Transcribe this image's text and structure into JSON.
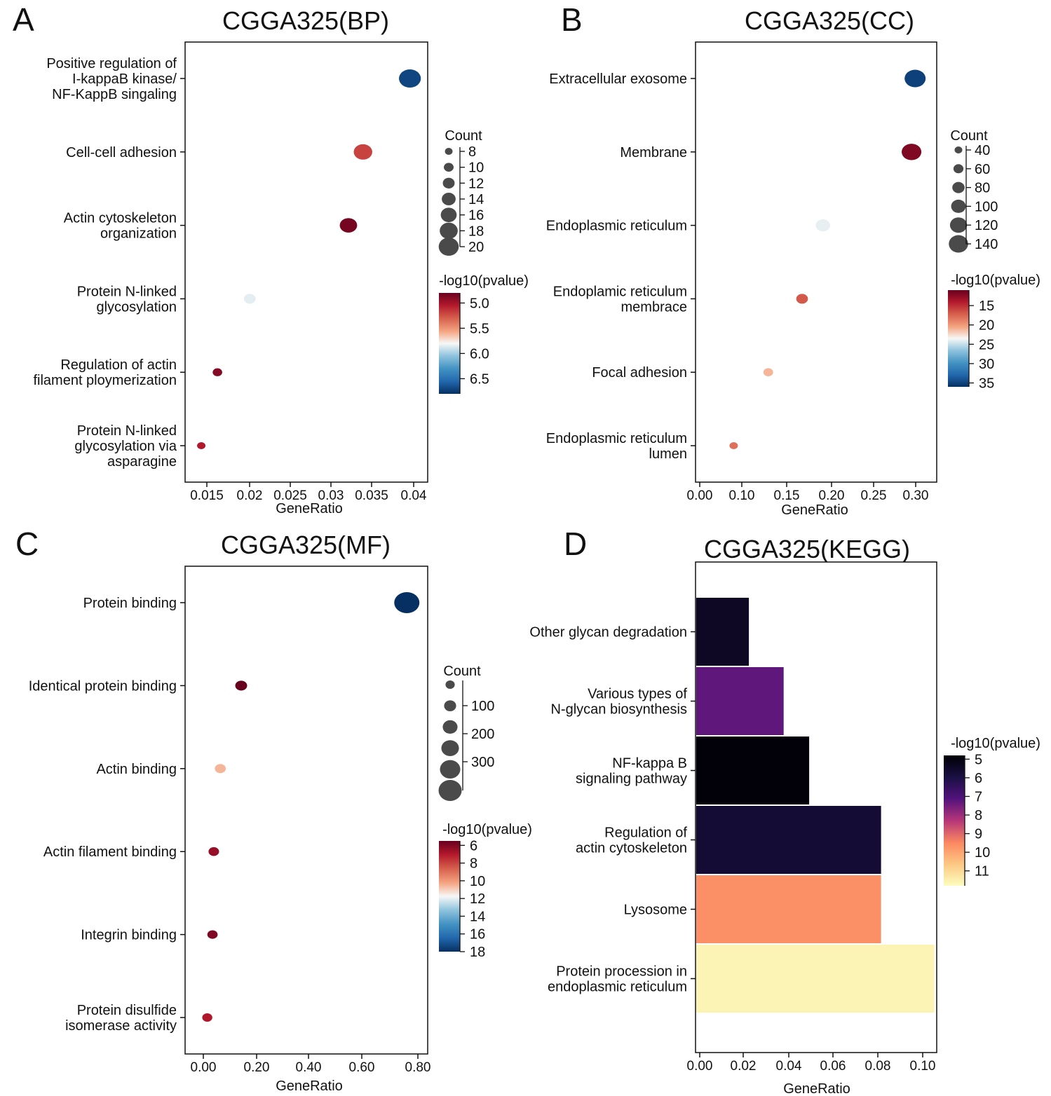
{
  "chart_data": [
    {
      "panel": "A",
      "title": "CGGA325(BP)",
      "type": "scatter",
      "xlabel": "GeneRatio",
      "xlim": [
        0.012,
        0.042
      ],
      "xticks": [
        "0.015",
        "0.02",
        "0.025",
        "0.03",
        "0.035",
        "0.04"
      ],
      "categories": [
        [
          "Positive regulation of",
          "I-kappaB kinase/",
          "NF-KappB singaling"
        ],
        [
          "Cell-cell adhesion"
        ],
        [
          "Actin cytoskeleton",
          "organization"
        ],
        [
          "Protein N-linked",
          "glycosylation"
        ],
        [
          "Regulation of actin",
          "filament ploymerization"
        ],
        [
          "Protein N-linked",
          "glycosylation via",
          "asparagine"
        ]
      ],
      "x": [
        0.0398,
        0.034,
        0.0322,
        0.02,
        0.016,
        0.014
      ],
      "count": [
        20,
        17,
        16,
        11,
        9,
        8
      ],
      "pvalue": [
        6.7,
        5.2,
        4.85,
        5.85,
        4.9,
        5.05
      ],
      "size_legend": {
        "title": "Count",
        "ticks": [
          "8",
          "10",
          "12",
          "14",
          "16",
          "18",
          "20"
        ]
      },
      "color_legend": {
        "title": "-log10(pvalue)",
        "ticks": [
          "5.0",
          "5.5",
          "6.0",
          "6.5"
        ],
        "range": [
          4.8,
          6.8
        ],
        "reversed": false,
        "palette": "RdBu"
      }
    },
    {
      "panel": "B",
      "title": "CGGA325(CC)",
      "type": "scatter",
      "xlabel": "GeneRatio",
      "xlim": [
        -0.005,
        0.33
      ],
      "xticks": [
        "0.00",
        "0.10",
        "0.15",
        "0.20",
        "0.25",
        "0.30"
      ],
      "categories": [
        [
          "Extracellular exosome"
        ],
        [
          "Membrane"
        ],
        [
          "Endoplasmic reticulum"
        ],
        [
          "Endoplamic reticulum",
          "membrace"
        ],
        [
          "Focal adhesion"
        ],
        [
          "Endoplasmic reticulum",
          "lumen"
        ]
      ],
      "x": [
        0.3,
        0.295,
        0.172,
        0.143,
        0.096,
        0.048
      ],
      "count": [
        140,
        130,
        90,
        70,
        55,
        45
      ],
      "pvalue": [
        35,
        12,
        24,
        17,
        21,
        18
      ],
      "size_legend": {
        "title": "Count",
        "ticks": [
          "40",
          "60",
          "80",
          "100",
          "120",
          "140"
        ]
      },
      "color_legend": {
        "title": "-log10(pvalue)",
        "ticks": [
          "15",
          "20",
          "25",
          "30",
          "35"
        ],
        "range": [
          11,
          36
        ],
        "reversed": false,
        "palette": "RdBu"
      }
    },
    {
      "panel": "C",
      "title": "CGGA325(MF)",
      "type": "scatter",
      "xlabel": "GeneRatio",
      "xlim": [
        -0.07,
        0.86
      ],
      "xticks": [
        "0.00",
        "0.20",
        "0.40",
        "0.60",
        "0.80"
      ],
      "categories": [
        [
          "Protein binding"
        ],
        [
          "Identical protein binding"
        ],
        [
          "Actin binding"
        ],
        [
          "Actin filament binding"
        ],
        [
          "Integrin binding"
        ],
        [
          "Protein disulfide",
          "isomerase activity"
        ]
      ],
      "x": [
        0.78,
        0.145,
        0.065,
        0.04,
        0.035,
        0.015
      ],
      "count": [
        380,
        80,
        60,
        50,
        45,
        40
      ],
      "pvalue": [
        18,
        5.5,
        10.5,
        6.5,
        6,
        7
      ],
      "size_legend": {
        "title": "Count",
        "ticks": [
          "100",
          "200",
          "300"
        ]
      },
      "color_legend": {
        "title": "-log10(pvalue)",
        "ticks": [
          "6",
          "8",
          "10",
          "12",
          "14",
          "16",
          "18"
        ],
        "range": [
          5.5,
          18
        ],
        "reversed": false,
        "palette": "RdBu"
      }
    },
    {
      "panel": "D",
      "title": "CGGA325(KEGG)",
      "type": "bar",
      "orientation": "horizontal",
      "xlabel": "GeneRatio",
      "xlim": [
        0,
        0.104
      ],
      "xticks": [
        "0.00",
        "0.02",
        "0.04",
        "0.06",
        "0.08",
        "0.10"
      ],
      "categories": [
        [
          "Other glycan degradation"
        ],
        [
          "Various types of",
          "N-glycan biosynthesis"
        ],
        [
          "NF-kappa B",
          "signaling pathway"
        ],
        [
          "Regulation of",
          "actin cytoskeleton"
        ],
        [
          "Lysosome"
        ],
        [
          "Protein procession in",
          "endoplasmic reticulum"
        ]
      ],
      "values": [
        0.023,
        0.038,
        0.049,
        0.08,
        0.08,
        0.103
      ],
      "pvalue": [
        5.4,
        7.3,
        4.9,
        5.7,
        9.6,
        11.6
      ],
      "color_legend": {
        "title": "-log10(pvalue)",
        "ticks": [
          "5",
          "6",
          "7",
          "8",
          "9",
          "10",
          "11"
        ],
        "range": [
          4.8,
          11.8
        ],
        "reversed": false,
        "palette": "magma"
      }
    }
  ]
}
